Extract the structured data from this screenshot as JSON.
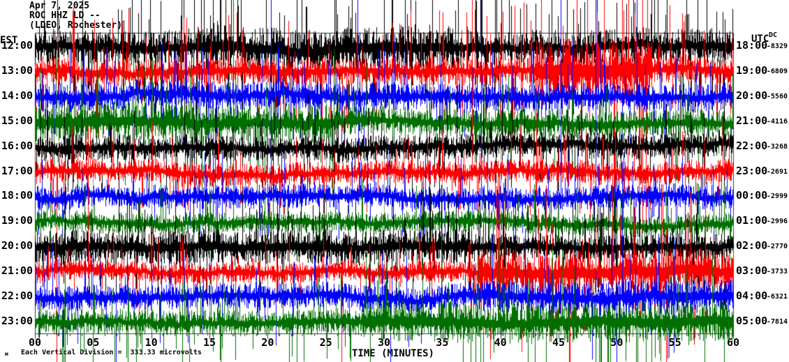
{
  "header": {
    "date": "Apr 7, 2025",
    "station": "ROC HHZ LD --",
    "location": "(LDEO, Rochester)"
  },
  "axes": {
    "left_header": "EST",
    "right_header": "UTC",
    "dc_header": "DC",
    "x_label": "TIME (MINUTES)",
    "x_ticks": [
      "00",
      "05",
      "10",
      "15",
      "20",
      "25",
      "30",
      "35",
      "40",
      "45",
      "50",
      "55",
      "60"
    ]
  },
  "footer": {
    "mark": "м",
    "scale_text": "Each Vertical Division =  333.33 microvolts"
  },
  "colors": {
    "trace_cycle": [
      "#000000",
      "#ff0000",
      "#0000ff",
      "#006f00"
    ],
    "grid": "#909090",
    "frame": "#3a3a3a",
    "background": "#ffffff"
  },
  "chart_data": {
    "type": "line",
    "subtype": "helicorder-seismogram",
    "title": "ROC HHZ LD -- (LDEO, Rochester) Apr 7, 2025",
    "xlabel": "TIME (MINUTES)",
    "xlim": [
      0,
      60
    ],
    "x_tick_interval_minutes": 5,
    "minutes_per_row": 60,
    "rows_are_hours_local": "EST",
    "scale_text": "Each Vertical Division =  333.33 microvolts",
    "microvolts_per_division": 333.33,
    "grid": true,
    "rows": [
      {
        "est": "12:00",
        "utc": "18:00",
        "dc": "-8329",
        "color": "#000000",
        "base_amp": 16,
        "spike_p": 0.1,
        "spike_k": 5,
        "events": [
          [
            14,
            36,
            1.3
          ]
        ]
      },
      {
        "est": "13:00",
        "utc": "19:00",
        "dc": "-6809",
        "color": "#ff0000",
        "base_amp": 13,
        "spike_p": 0.08,
        "spike_k": 5,
        "events": [
          [
            43,
            53,
            2.4
          ]
        ]
      },
      {
        "est": "14:00",
        "utc": "20:00",
        "dc": "-5560",
        "color": "#0000ff",
        "base_amp": 13,
        "spike_p": 0.07,
        "spike_k": 4,
        "events": []
      },
      {
        "est": "15:00",
        "utc": "21:00",
        "dc": "-4116",
        "color": "#006f00",
        "base_amp": 13,
        "spike_p": 0.06,
        "spike_k": 4,
        "events": [
          [
            0,
            26,
            1.4
          ]
        ]
      },
      {
        "est": "16:00",
        "utc": "22:00",
        "dc": "-3268",
        "color": "#000000",
        "base_amp": 12,
        "spike_p": 0.07,
        "spike_k": 4,
        "events": []
      },
      {
        "est": "17:00",
        "utc": "23:00",
        "dc": "-2691",
        "color": "#ff0000",
        "base_amp": 11,
        "spike_p": 0.06,
        "spike_k": 4,
        "events": []
      },
      {
        "est": "18:00",
        "utc": "00:00",
        "dc": "-2999",
        "color": "#0000ff",
        "base_amp": 11,
        "spike_p": 0.06,
        "spike_k": 4,
        "events": []
      },
      {
        "est": "19:00",
        "utc": "01:00",
        "dc": "-2996",
        "color": "#006f00",
        "base_amp": 10,
        "spike_p": 0.05,
        "spike_k": 4,
        "events": []
      },
      {
        "est": "20:00",
        "utc": "02:00",
        "dc": "-2770",
        "color": "#000000",
        "base_amp": 13,
        "spike_p": 0.07,
        "spike_k": 4,
        "events": [
          [
            0,
            38,
            1.25
          ]
        ]
      },
      {
        "est": "21:00",
        "utc": "03:00",
        "dc": "-3733",
        "color": "#ff0000",
        "base_amp": 10,
        "spike_p": 0.06,
        "spike_k": 4,
        "events": [
          [
            38,
            60,
            2.2
          ]
        ]
      },
      {
        "est": "22:00",
        "utc": "04:00",
        "dc": "-6321",
        "color": "#0000ff",
        "base_amp": 12,
        "spike_p": 0.06,
        "spike_k": 4,
        "events": [
          [
            38,
            60,
            1.35
          ]
        ]
      },
      {
        "est": "23:00",
        "utc": "05:00",
        "dc": "-7814",
        "color": "#006f00",
        "base_amp": 12,
        "spike_p": 0.06,
        "spike_k": 4,
        "events": [
          [
            28,
            60,
            1.6
          ]
        ]
      }
    ]
  }
}
